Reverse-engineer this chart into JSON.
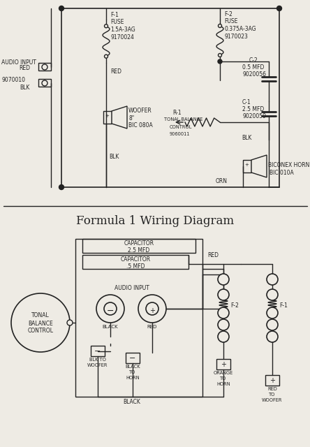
{
  "bg_color": "#eeebe4",
  "line_color": "#222222",
  "title_bottom": "Formula 1 Wiring Diagram",
  "schematic_labels": {
    "audio_input": "AUDIO INPUT",
    "part_no": "9070010",
    "red": "RED",
    "blk": "BLK",
    "f1_label": "F-1",
    "f1_fuse": "FUSE",
    "f1_spec": "1.5A-3AG",
    "f1_part": "9170024",
    "f2_label": "F-2",
    "f2_fuse": "FUSE",
    "f2_spec": "0.375A-3AG",
    "f2_part": "9170023",
    "c2_label": "C-2",
    "c2_val": "0.5 MFD",
    "c2_part": "9020056",
    "c1_label": "C-1",
    "c1_val": "2.5 MFD",
    "c1_part": "9020059",
    "woofer": "WOOFER",
    "woofer_size": "8\"",
    "woofer_part": "BIC 080A",
    "r1_label": "R-1",
    "r1_name": "TONAL BALANCE",
    "r1_name2": "CONTROL",
    "r1_part": "9060011",
    "orn": "ORN",
    "horn_name": "BICONEX HORN",
    "horn_part": "BIC 010A",
    "blk2": "BLK"
  }
}
